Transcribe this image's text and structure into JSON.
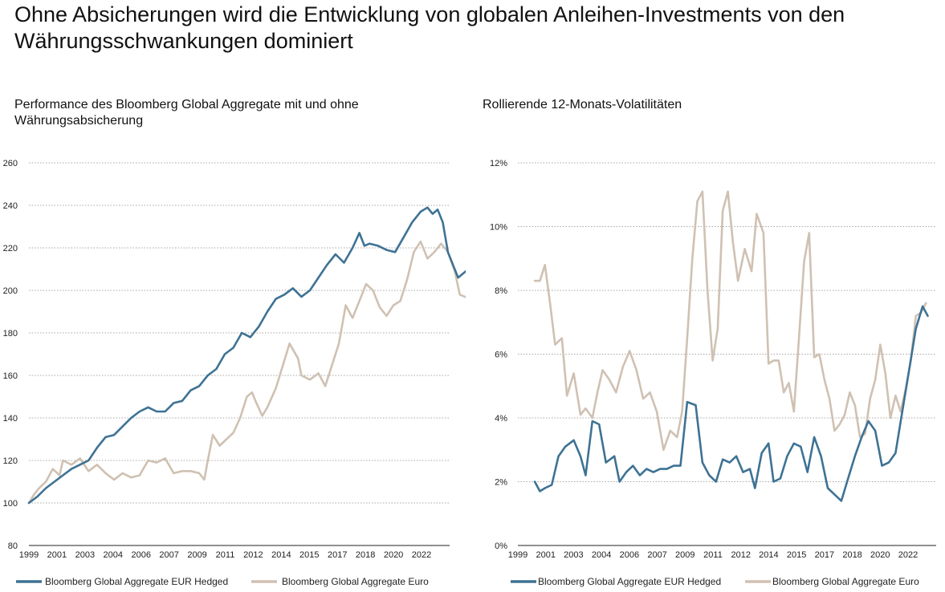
{
  "title": "Ohne Absicherungen wird die Entwicklung von globalen Anleihen-Investments von den Währungsschwankungen dominiert",
  "colors": {
    "hedged": "#3e7294",
    "euro": "#cfc1b2",
    "grid": "#8a8a8a",
    "axis": "#222222"
  },
  "chart_data": [
    {
      "type": "line",
      "title": "Performance des Bloomberg Global Aggregate mit und ohne Währungsabsicherung",
      "ylim": [
        80,
        260
      ],
      "yticks": [
        "80",
        "100",
        "120",
        "140",
        "160",
        "180",
        "200",
        "220",
        "240",
        "260"
      ],
      "xlim": [
        1999,
        2023.7
      ],
      "xticks": [
        "1999",
        "2001",
        "2003",
        "2004",
        "2006",
        "2007",
        "2009",
        "2011",
        "2012",
        "2014",
        "2015",
        "2017",
        "2018",
        "2020",
        "2022"
      ],
      "legend": "bottom",
      "series": [
        {
          "name": "Bloomberg Global Aggregate EUR Hedged",
          "color": "#3e7294",
          "points": [
            [
              1999,
              100
            ],
            [
              1999.5,
              103
            ],
            [
              2000,
              107
            ],
            [
              2000.5,
              110
            ],
            [
              2001,
              113
            ],
            [
              2001.5,
              116
            ],
            [
              2002,
              118
            ],
            [
              2002.5,
              120
            ],
            [
              2003,
              126
            ],
            [
              2003.5,
              131
            ],
            [
              2004,
              132
            ],
            [
              2004.5,
              136
            ],
            [
              2005,
              140
            ],
            [
              2005.5,
              143
            ],
            [
              2006,
              145
            ],
            [
              2006.5,
              143
            ],
            [
              2007,
              143
            ],
            [
              2007.5,
              147
            ],
            [
              2008,
              148
            ],
            [
              2008.5,
              153
            ],
            [
              2009,
              155
            ],
            [
              2009.5,
              160
            ],
            [
              2010,
              163
            ],
            [
              2010.5,
              170
            ],
            [
              2011,
              173
            ],
            [
              2011.5,
              180
            ],
            [
              2012,
              178
            ],
            [
              2012.5,
              183
            ],
            [
              2013,
              190
            ],
            [
              2013.5,
              196
            ],
            [
              2014,
              198
            ],
            [
              2014.5,
              201
            ],
            [
              2015,
              197
            ],
            [
              2015.5,
              200
            ],
            [
              2016,
              206
            ],
            [
              2016.5,
              212
            ],
            [
              2017,
              217
            ],
            [
              2017.5,
              213
            ],
            [
              2018,
              220
            ],
            [
              2018.4,
              227
            ],
            [
              2018.7,
              221
            ],
            [
              2019,
              222
            ],
            [
              2019.5,
              221
            ],
            [
              2020,
              219
            ],
            [
              2020.5,
              218
            ],
            [
              2021,
              225
            ],
            [
              2021.5,
              232
            ],
            [
              2022,
              237
            ],
            [
              2022.4,
              239
            ],
            [
              2022.7,
              236
            ],
            [
              2023,
              238
            ],
            [
              2023.3,
              232
            ],
            [
              2023.6,
              218
            ],
            [
              2023.9,
              212
            ],
            [
              2024.2,
              206
            ],
            [
              2024.5,
              208
            ],
            [
              2024.8,
              210
            ]
          ]
        },
        {
          "name": "Bloomberg Global Aggregate Euro",
          "color": "#cfc1b2",
          "points": [
            [
              1999,
              100
            ],
            [
              1999.3,
              104
            ],
            [
              1999.6,
              107
            ],
            [
              2000,
              110
            ],
            [
              2000.4,
              116
            ],
            [
              2000.8,
              113
            ],
            [
              2001,
              120
            ],
            [
              2001.5,
              118
            ],
            [
              2002,
              121
            ],
            [
              2002.5,
              115
            ],
            [
              2003,
              118
            ],
            [
              2003.5,
              114
            ],
            [
              2004,
              111
            ],
            [
              2004.5,
              114
            ],
            [
              2005,
              112
            ],
            [
              2005.5,
              113
            ],
            [
              2006,
              120
            ],
            [
              2006.5,
              119
            ],
            [
              2007,
              121
            ],
            [
              2007.5,
              114
            ],
            [
              2008,
              115
            ],
            [
              2008.5,
              115
            ],
            [
              2009,
              114
            ],
            [
              2009.3,
              111
            ],
            [
              2009.5,
              120
            ],
            [
              2009.8,
              132
            ],
            [
              2010.2,
              127
            ],
            [
              2010.6,
              130
            ],
            [
              2011,
              133
            ],
            [
              2011.4,
              140
            ],
            [
              2011.8,
              150
            ],
            [
              2012.1,
              152
            ],
            [
              2012.3,
              148
            ],
            [
              2012.7,
              141
            ],
            [
              2013,
              145
            ],
            [
              2013.5,
              154
            ],
            [
              2014,
              167
            ],
            [
              2014.3,
              175
            ],
            [
              2014.8,
              168
            ],
            [
              2015,
              160
            ],
            [
              2015.5,
              158
            ],
            [
              2016,
              161
            ],
            [
              2016.4,
              155
            ],
            [
              2016.8,
              165
            ],
            [
              2017.2,
              175
            ],
            [
              2017.6,
              193
            ],
            [
              2018,
              187
            ],
            [
              2018.4,
              195
            ],
            [
              2018.8,
              203
            ],
            [
              2019.2,
              200
            ],
            [
              2019.6,
              192
            ],
            [
              2020,
              188
            ],
            [
              2020.4,
              193
            ],
            [
              2020.8,
              195
            ],
            [
              2021.2,
              205
            ],
            [
              2021.6,
              218
            ],
            [
              2022,
              223
            ],
            [
              2022.4,
              215
            ],
            [
              2022.8,
              218
            ],
            [
              2023.2,
              222
            ],
            [
              2023.6,
              218
            ],
            [
              2024,
              209
            ],
            [
              2024.3,
              198
            ],
            [
              2024.6,
              197
            ],
            [
              2024.8,
              196
            ]
          ]
        }
      ]
    },
    {
      "type": "line",
      "title": "Rollierende 12-Monats-Volatilitäten",
      "ylim": [
        0,
        12
      ],
      "yticks": [
        "0%",
        "2%",
        "4%",
        "6%",
        "8%",
        "10%",
        "12%"
      ],
      "xlim": [
        1999,
        2023.7
      ],
      "xticks": [
        "1999",
        "2001",
        "2003",
        "2004",
        "2006",
        "2007",
        "2009",
        "2011",
        "2012",
        "2014",
        "2015",
        "2017",
        "2018",
        "2020",
        "2022"
      ],
      "legend": "bottom",
      "series": [
        {
          "name": "Bloomberg Global Aggregate EUR Hedged",
          "color": "#3e7294",
          "points": [
            [
              2000,
              2.0
            ],
            [
              2000.3,
              1.7
            ],
            [
              2000.6,
              1.8
            ],
            [
              2001,
              1.9
            ],
            [
              2001.4,
              2.8
            ],
            [
              2001.8,
              3.1
            ],
            [
              2002.3,
              3.3
            ],
            [
              2002.7,
              2.8
            ],
            [
              2003,
              2.2
            ],
            [
              2003.4,
              3.9
            ],
            [
              2003.8,
              3.8
            ],
            [
              2004.2,
              2.6
            ],
            [
              2004.7,
              2.8
            ],
            [
              2005,
              2.0
            ],
            [
              2005.4,
              2.3
            ],
            [
              2005.8,
              2.5
            ],
            [
              2006.2,
              2.2
            ],
            [
              2006.6,
              2.4
            ],
            [
              2007,
              2.3
            ],
            [
              2007.4,
              2.4
            ],
            [
              2007.8,
              2.4
            ],
            [
              2008.2,
              2.5
            ],
            [
              2008.6,
              2.5
            ],
            [
              2009,
              4.5
            ],
            [
              2009.5,
              4.4
            ],
            [
              2009.9,
              2.6
            ],
            [
              2010.3,
              2.2
            ],
            [
              2010.7,
              2.0
            ],
            [
              2011.1,
              2.7
            ],
            [
              2011.5,
              2.6
            ],
            [
              2011.9,
              2.8
            ],
            [
              2012.3,
              2.3
            ],
            [
              2012.7,
              2.4
            ],
            [
              2013,
              1.8
            ],
            [
              2013.4,
              2.9
            ],
            [
              2013.8,
              3.2
            ],
            [
              2014.1,
              2.0
            ],
            [
              2014.5,
              2.1
            ],
            [
              2014.9,
              2.8
            ],
            [
              2015.3,
              3.2
            ],
            [
              2015.7,
              3.1
            ],
            [
              2016.1,
              2.3
            ],
            [
              2016.5,
              3.4
            ],
            [
              2016.9,
              2.8
            ],
            [
              2017.3,
              1.8
            ],
            [
              2017.7,
              1.6
            ],
            [
              2018.1,
              1.4
            ],
            [
              2018.5,
              2.1
            ],
            [
              2018.9,
              2.8
            ],
            [
              2019.3,
              3.4
            ],
            [
              2019.7,
              3.9
            ],
            [
              2020.1,
              3.6
            ],
            [
              2020.5,
              2.5
            ],
            [
              2020.9,
              2.6
            ],
            [
              2021.3,
              2.9
            ],
            [
              2021.7,
              4.2
            ],
            [
              2022.1,
              5.5
            ],
            [
              2022.5,
              6.8
            ],
            [
              2022.9,
              7.5
            ],
            [
              2023.2,
              7.2
            ]
          ]
        },
        {
          "name": "Bloomberg Global Aggregate Euro",
          "color": "#cfc1b2",
          "points": [
            [
              2000,
              8.3
            ],
            [
              2000.3,
              8.3
            ],
            [
              2000.6,
              8.8
            ],
            [
              2000.9,
              7.6
            ],
            [
              2001.2,
              6.3
            ],
            [
              2001.6,
              6.5
            ],
            [
              2001.9,
              4.7
            ],
            [
              2002.3,
              5.4
            ],
            [
              2002.7,
              4.1
            ],
            [
              2003,
              4.3
            ],
            [
              2003.4,
              4.0
            ],
            [
              2003.7,
              4.8
            ],
            [
              2004,
              5.5
            ],
            [
              2004.4,
              5.2
            ],
            [
              2004.8,
              4.8
            ],
            [
              2005.2,
              5.6
            ],
            [
              2005.6,
              6.1
            ],
            [
              2006,
              5.5
            ],
            [
              2006.4,
              4.6
            ],
            [
              2006.8,
              4.8
            ],
            [
              2007.2,
              4.2
            ],
            [
              2007.6,
              3.0
            ],
            [
              2008,
              3.6
            ],
            [
              2008.4,
              3.4
            ],
            [
              2008.7,
              4.2
            ],
            [
              2009,
              6.5
            ],
            [
              2009.3,
              9.0
            ],
            [
              2009.6,
              10.8
            ],
            [
              2009.9,
              11.1
            ],
            [
              2010.2,
              8.0
            ],
            [
              2010.5,
              5.8
            ],
            [
              2010.8,
              6.8
            ],
            [
              2011.1,
              10.5
            ],
            [
              2011.4,
              11.1
            ],
            [
              2011.7,
              9.5
            ],
            [
              2012,
              8.3
            ],
            [
              2012.4,
              9.3
            ],
            [
              2012.8,
              8.6
            ],
            [
              2013.1,
              10.4
            ],
            [
              2013.5,
              9.8
            ],
            [
              2013.8,
              5.7
            ],
            [
              2014.1,
              5.8
            ],
            [
              2014.4,
              5.8
            ],
            [
              2014.7,
              4.8
            ],
            [
              2015,
              5.1
            ],
            [
              2015.3,
              4.2
            ],
            [
              2015.6,
              6.5
            ],
            [
              2015.9,
              8.9
            ],
            [
              2016.2,
              9.8
            ],
            [
              2016.5,
              5.9
            ],
            [
              2016.8,
              6.0
            ],
            [
              2017.1,
              5.2
            ],
            [
              2017.4,
              4.6
            ],
            [
              2017.7,
              3.6
            ],
            [
              2018,
              3.8
            ],
            [
              2018.3,
              4.1
            ],
            [
              2018.6,
              4.8
            ],
            [
              2018.9,
              4.4
            ],
            [
              2019.2,
              3.4
            ],
            [
              2019.5,
              3.5
            ],
            [
              2019.8,
              4.6
            ],
            [
              2020.1,
              5.2
            ],
            [
              2020.4,
              6.3
            ],
            [
              2020.7,
              5.4
            ],
            [
              2021,
              4.0
            ],
            [
              2021.3,
              4.7
            ],
            [
              2021.6,
              4.2
            ],
            [
              2021.9,
              4.9
            ],
            [
              2022.2,
              5.8
            ],
            [
              2022.5,
              7.2
            ],
            [
              2022.8,
              7.3
            ],
            [
              2023.1,
              7.6
            ]
          ]
        }
      ]
    }
  ]
}
